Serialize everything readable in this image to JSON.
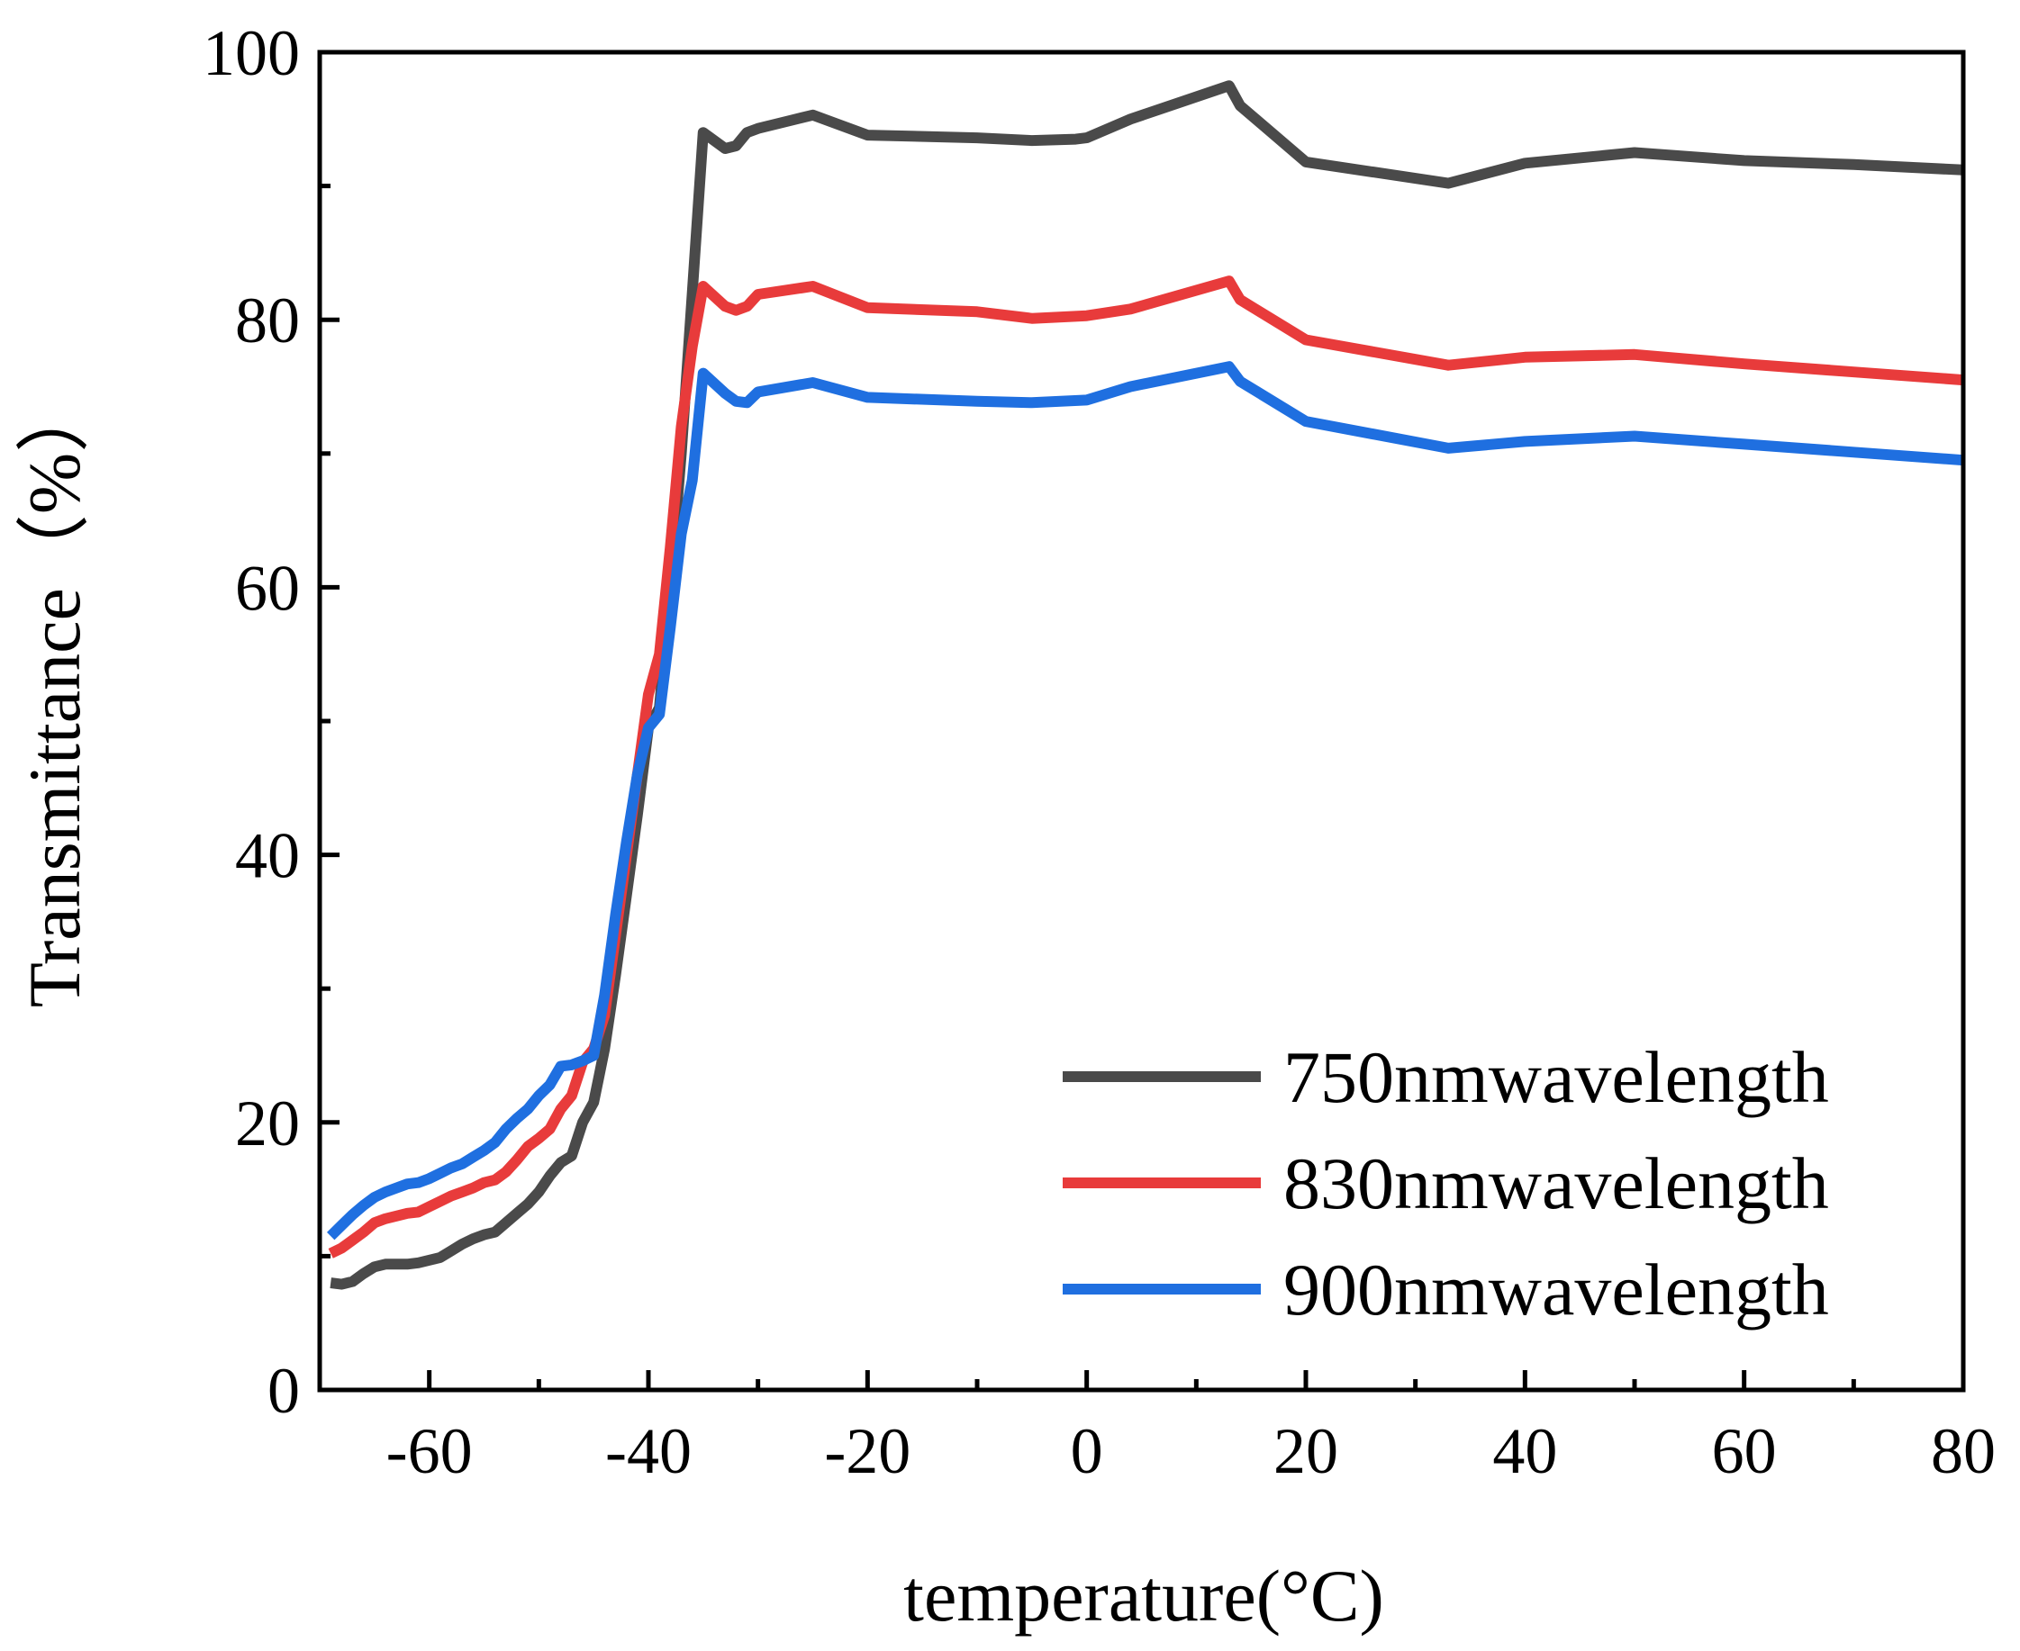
{
  "chart_data": {
    "type": "line",
    "title": "",
    "xlabel": "temperature(°C)",
    "ylabel": "Transmittance（%）",
    "xlim": [
      -70,
      80
    ],
    "ylim": [
      0,
      100
    ],
    "xticks": [
      -60,
      -40,
      -20,
      0,
      20,
      40,
      60,
      80
    ],
    "xtick_labels": [
      "-60",
      "-40",
      "-20",
      "0",
      "20",
      "40",
      "60",
      "80"
    ],
    "yticks": [
      0,
      20,
      40,
      60,
      80,
      100
    ],
    "ytick_labels": [
      "0",
      "20",
      "40",
      "60",
      "80",
      "100"
    ],
    "x_minor_step": 10,
    "y_minor_step": 10,
    "grid": false,
    "legend_position": "bottom-right",
    "series": [
      {
        "name": "750nmwavelength",
        "color": "#4a4a4a",
        "x": [
          -69,
          -68,
          -67,
          -66,
          -65,
          -64,
          -62,
          -61,
          -59,
          -58,
          -57,
          -56,
          -55,
          -54,
          -53,
          -52,
          -51,
          -50,
          -49,
          -48,
          -47,
          -46,
          -45,
          -44.5,
          -44,
          -43,
          -42,
          -41,
          -40,
          -39,
          -38,
          -37,
          -36,
          -35,
          -33,
          -32,
          -31,
          -30,
          -25,
          -20,
          -10,
          -5,
          -1,
          0,
          4,
          13,
          14,
          20,
          33,
          40,
          50,
          60,
          70,
          80
        ],
        "y": [
          8,
          7.9,
          8.1,
          8.7,
          9.2,
          9.4,
          9.4,
          9.5,
          9.9,
          10.4,
          10.9,
          11.3,
          11.6,
          11.8,
          12.5,
          13.2,
          13.9,
          14.8,
          16.0,
          17.0,
          17.5,
          20.0,
          21.5,
          23.5,
          25.5,
          31.0,
          37.0,
          43.0,
          49.5,
          51.0,
          60.0,
          70.0,
          82.0,
          94.0,
          92.8,
          93.0,
          94.0,
          94.3,
          95.3,
          93.8,
          93.6,
          93.4,
          93.5,
          93.6,
          95.0,
          97.5,
          96.0,
          91.8,
          90.2,
          91.7,
          92.5,
          91.9,
          91.6,
          91.2
        ]
      },
      {
        "name": "830nmwavelength",
        "color": "#e83b3b",
        "x": [
          -69,
          -68,
          -67,
          -66,
          -65,
          -64,
          -63,
          -62,
          -61,
          -60,
          -59,
          -58,
          -57,
          -56,
          -55,
          -54,
          -53,
          -52,
          -51,
          -50,
          -49,
          -48,
          -47,
          -46,
          -45,
          -44,
          -43,
          -42,
          -41,
          -40,
          -39,
          -38,
          -37,
          -36,
          -35,
          -33,
          -32,
          -31,
          -30,
          -25,
          -20,
          -10,
          -5,
          0,
          4,
          13,
          14,
          20,
          33,
          40,
          50,
          60,
          70,
          80
        ],
        "y": [
          10.2,
          10.6,
          11.2,
          11.8,
          12.5,
          12.8,
          13.0,
          13.2,
          13.3,
          13.7,
          14.1,
          14.5,
          14.8,
          15.1,
          15.5,
          15.7,
          16.3,
          17.2,
          18.2,
          18.8,
          19.5,
          21.0,
          22.0,
          24.5,
          25.5,
          28.0,
          34.0,
          40.0,
          46.0,
          52.0,
          55.0,
          63.0,
          72.0,
          78.0,
          82.5,
          81.0,
          80.7,
          81.0,
          81.9,
          82.5,
          80.9,
          80.6,
          80.1,
          80.3,
          80.8,
          82.9,
          81.5,
          78.5,
          76.6,
          77.2,
          77.4,
          76.7,
          76.1,
          75.5
        ]
      },
      {
        "name": "900nmwavelength",
        "color": "#1f6fe0",
        "x": [
          -69,
          -68,
          -67,
          -66,
          -65,
          -64,
          -63,
          -62,
          -61,
          -60,
          -59,
          -58,
          -57,
          -56,
          -55,
          -54,
          -53,
          -52,
          -51,
          -50,
          -49,
          -48,
          -47,
          -46,
          -45,
          -44,
          -43,
          -42,
          -41,
          -40,
          -39,
          -38,
          -37,
          -36,
          -35,
          -33,
          -32,
          -31,
          -30,
          -25,
          -20,
          -10,
          -5,
          0,
          4,
          13,
          14,
          20,
          33,
          40,
          50,
          60,
          70,
          80
        ],
        "y": [
          11.5,
          12.3,
          13.1,
          13.8,
          14.4,
          14.8,
          15.1,
          15.4,
          15.5,
          15.8,
          16.2,
          16.6,
          16.9,
          17.4,
          17.9,
          18.5,
          19.5,
          20.3,
          21.0,
          22.0,
          22.8,
          24.2,
          24.3,
          24.6,
          25.0,
          29.5,
          35.5,
          41.0,
          46.0,
          49.5,
          50.5,
          57.0,
          64.0,
          68.0,
          76.0,
          74.5,
          73.9,
          73.8,
          74.6,
          75.3,
          74.2,
          73.9,
          73.8,
          74.0,
          75.0,
          76.5,
          75.4,
          72.4,
          70.4,
          70.9,
          71.3,
          70.7,
          70.1,
          69.5
        ]
      }
    ]
  }
}
